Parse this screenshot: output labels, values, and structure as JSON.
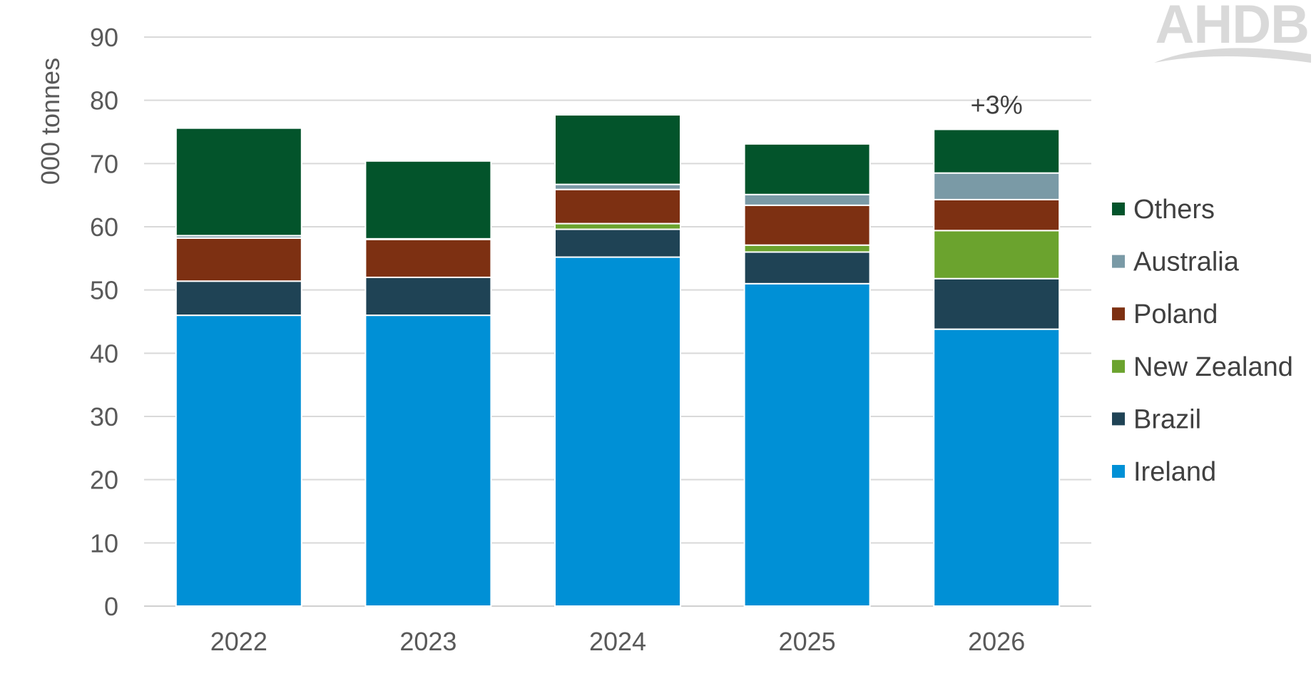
{
  "logo": {
    "text": "AHDB"
  },
  "chart_data": {
    "type": "bar",
    "stacked": true,
    "ylabel": "000 tonnes",
    "ylim": [
      0,
      90
    ],
    "yticks": [
      0,
      10,
      20,
      30,
      40,
      50,
      60,
      70,
      80,
      90
    ],
    "grid": true,
    "legend_position": "right",
    "categories": [
      "2022",
      "2023",
      "2024",
      "2025",
      "2026"
    ],
    "series": [
      {
        "name": "Ireland",
        "color": "#0090D6",
        "values": [
          46,
          46,
          55.2,
          51,
          43.8
        ]
      },
      {
        "name": "Brazil",
        "color": "#1F4355",
        "values": [
          5.4,
          6,
          4.4,
          5,
          8
        ]
      },
      {
        "name": "New Zealand",
        "color": "#6BA32E",
        "values": [
          0,
          0,
          0.9,
          1.1,
          7.6
        ]
      },
      {
        "name": "Poland",
        "color": "#7D3012",
        "values": [
          6.8,
          6,
          5.4,
          6.3,
          4.9
        ]
      },
      {
        "name": "Australia",
        "color": "#7A9AA6",
        "values": [
          0.4,
          0.1,
          0.8,
          1.7,
          4.2
        ]
      },
      {
        "name": "Others",
        "color": "#03542B",
        "values": [
          17,
          12.3,
          11,
          8,
          6.9
        ]
      }
    ],
    "annotations": [
      {
        "category": "2026",
        "text": "+3%"
      }
    ]
  }
}
